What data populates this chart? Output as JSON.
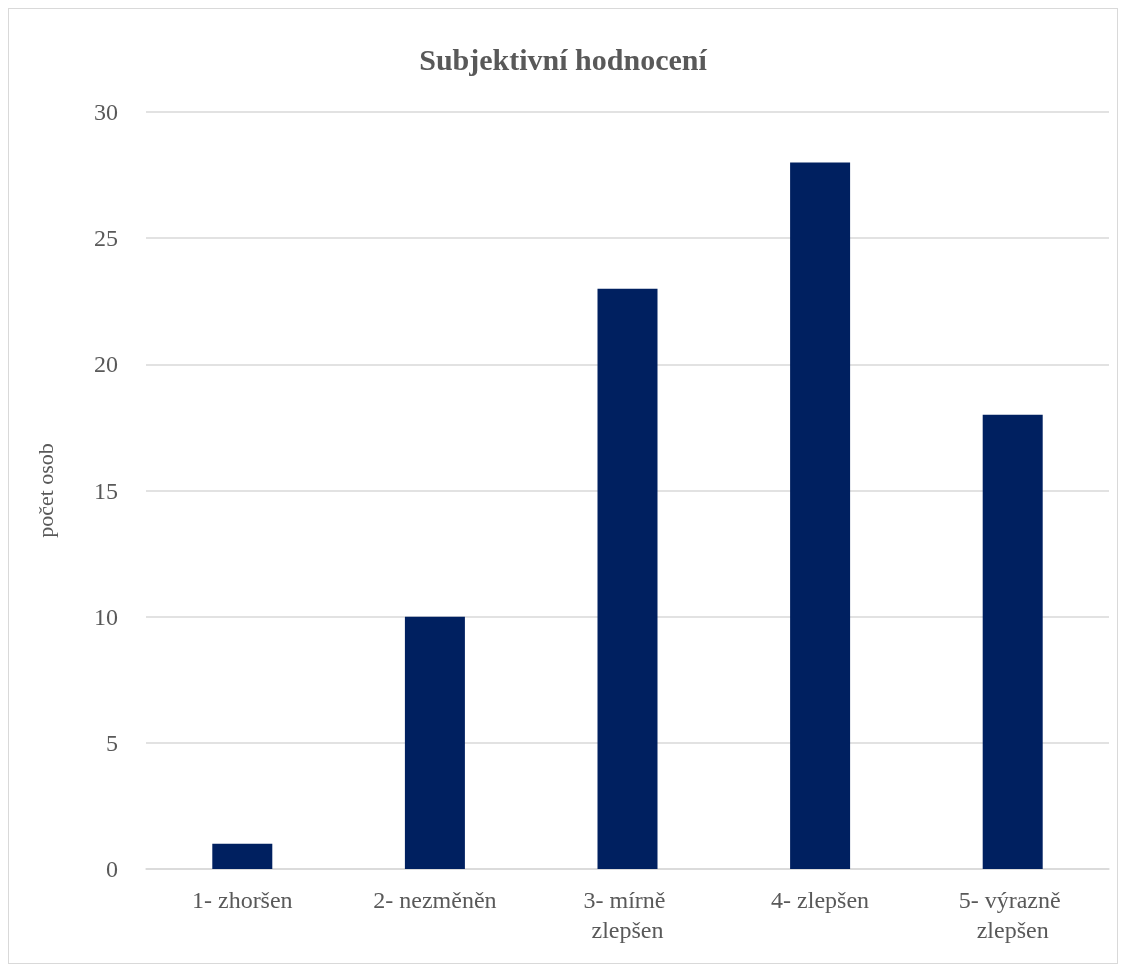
{
  "chart_data": {
    "type": "bar",
    "title": "Subjektivní hodnocení",
    "ylabel": "počet osob",
    "categories": [
      "1- zhoršen",
      "2- nezměněn",
      "3- mírně zlepšen",
      "4- zlepšen",
      "5- výrazně zlepšen"
    ],
    "values": [
      1,
      10,
      23,
      28,
      18
    ],
    "color": "#002060",
    "ylim": [
      0,
      30
    ],
    "yticks": [
      0,
      5,
      10,
      15,
      20,
      25,
      30
    ],
    "grid": "y"
  }
}
